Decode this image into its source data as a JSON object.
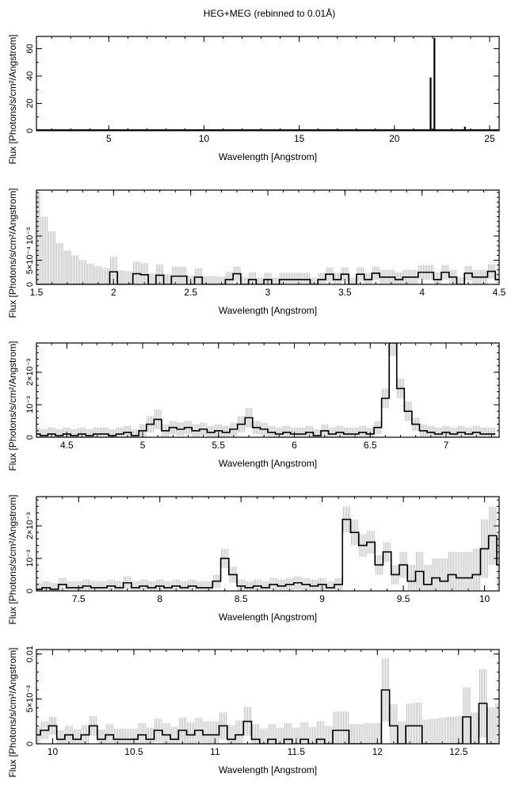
{
  "title": "HEG+MEG (rebinned to 0.01Å)",
  "colors": {
    "flux": "#000000",
    "error": "#b0b0b0",
    "frame": "#000000"
  },
  "chart_data": [
    {
      "type": "line",
      "xlabel": "Wavelength [Angstrom]",
      "ylabel": "Flux [Photons/s/cm²/Angstrom]",
      "xlim": [
        1.2,
        25.5
      ],
      "ylim": [
        0,
        69
      ],
      "xticks": [
        5,
        10,
        15,
        20,
        25
      ],
      "xtick_labels": [
        "5",
        "10",
        "15",
        "20",
        "25"
      ],
      "yticks": [
        0,
        20,
        40,
        60
      ],
      "ytick_labels": [
        "0",
        "20",
        "40",
        "60"
      ],
      "xminor": 1,
      "yminor": 10,
      "baseline": 0.3,
      "lines": [
        [
          21.9,
          39
        ],
        [
          22.1,
          68
        ],
        [
          23.7,
          3
        ]
      ]
    },
    {
      "type": "line",
      "xlabel": "Wavelength [Angstrom]",
      "ylabel": "Flux [Photons/s/cm²/Angstrom]",
      "xlim": [
        1.5,
        4.5
      ],
      "ylim": [
        0,
        0.00195
      ],
      "xticks": [
        1.5,
        2,
        2.5,
        3,
        3.5,
        4,
        4.5
      ],
      "xtick_labels": [
        "1.5",
        "2",
        "2.5",
        "3",
        "3.5",
        "4",
        "4.5"
      ],
      "yticks": [
        0,
        0.0005,
        0.001
      ],
      "ytick_labels": [
        "0",
        "5×10⁻⁴",
        "10⁻³"
      ],
      "xminor": 0.1,
      "yminor": 0.0001,
      "x0": 1.5,
      "dx": 0.05,
      "y_multiplier": 0.0001,
      "flux": [
        0,
        0,
        0,
        0,
        0,
        0,
        0,
        0,
        0,
        0,
        2.6,
        0,
        0,
        2.2,
        2.0,
        0,
        1.9,
        0,
        1.7,
        1.7,
        0,
        1.5,
        0,
        0,
        0,
        1,
        2.2,
        0,
        1,
        0,
        1,
        0,
        1,
        1,
        1,
        1,
        0,
        1,
        2.1,
        1,
        2.1,
        0,
        2.1,
        1,
        2.3,
        1.5,
        1.5,
        1,
        1.5,
        1.5,
        2.5,
        2.5,
        1,
        2.5,
        1.5,
        0,
        2.3,
        1.5,
        1.5,
        2.7,
        1
      ],
      "err": [
        19,
        14,
        11,
        8.5,
        7,
        6,
        5,
        4.3,
        3.8,
        3.4,
        3.1,
        2.9,
        2.7,
        2.5,
        2.4,
        2.3,
        2.2,
        2.1,
        2.0,
        1.9,
        1.8,
        1.8,
        1.7,
        1.7,
        1.6,
        1.6,
        1.5,
        1.5,
        1.5,
        1.4,
        1.4,
        1.4,
        1.4,
        1.4,
        1.4,
        1.4,
        1.4,
        1.4,
        1.4,
        1.4,
        1.4,
        1.4,
        1.4,
        1.4,
        1.4,
        1.5,
        1.5,
        1.5,
        1.5,
        1.5,
        1.5,
        1.5,
        1.5,
        1.5,
        1.5,
        1.5,
        1.5,
        1.5,
        1.5,
        1.5,
        1.5
      ]
    },
    {
      "type": "line",
      "xlabel": "Wavelength [Angstrom]",
      "ylabel": "Flux [Photons/s/cm²/Angstrom]",
      "xlim": [
        4.3,
        7.35
      ],
      "ylim": [
        0,
        0.0029
      ],
      "xticks": [
        4.5,
        5,
        5.5,
        6,
        6.5,
        7
      ],
      "xtick_labels": [
        "4.5",
        "5",
        "5.5",
        "6",
        "6.5",
        "7"
      ],
      "yticks": [
        0,
        0.001,
        0.002
      ],
      "ytick_labels": [
        "0",
        "10⁻³",
        "2×10⁻³"
      ],
      "xminor": 0.1,
      "yminor": 0.0002,
      "x0": 4.3,
      "dx": 0.05,
      "y_multiplier": 0.0001,
      "flux": [
        1,
        0.5,
        1,
        0.5,
        1,
        0.5,
        1,
        0.5,
        1,
        1,
        0.5,
        1,
        1.5,
        0.5,
        2,
        4,
        5.5,
        2,
        3,
        2.5,
        3,
        2,
        2.5,
        1.5,
        2,
        1.5,
        2.5,
        4,
        6,
        3,
        2.5,
        1.5,
        1,
        1.5,
        1,
        1,
        1.5,
        0.5,
        2,
        1,
        1.5,
        1,
        1,
        1.5,
        1,
        3,
        12,
        29,
        15,
        8,
        4,
        2,
        1.5,
        1,
        1.5,
        1,
        1.5,
        1,
        1.5,
        1,
        1
      ],
      "err": [
        2,
        2,
        2,
        2,
        2,
        2,
        2,
        2,
        2,
        2,
        2,
        2,
        2,
        2,
        2,
        2.5,
        3,
        2,
        2,
        2,
        2,
        2,
        2,
        2,
        2,
        2,
        2,
        2.5,
        3,
        2,
        2,
        2,
        2,
        2,
        2,
        2,
        2,
        2,
        2,
        2,
        2,
        2,
        2,
        2,
        2,
        2,
        3,
        4,
        3,
        3,
        2,
        2,
        2,
        2,
        2,
        2,
        2,
        2,
        2,
        2,
        2
      ]
    },
    {
      "type": "line",
      "xlabel": "Wavelength [Angstrom]",
      "ylabel": "Flux [Photons/s/cm²/Angstrom]",
      "xlim": [
        7.24,
        10.09
      ],
      "ylim": [
        0,
        0.0029
      ],
      "xticks": [
        7.5,
        8,
        8.5,
        9,
        9.5,
        10
      ],
      "xtick_labels": [
        "7.5",
        "8",
        "8.5",
        "9",
        "9.5",
        "10"
      ],
      "yticks": [
        0,
        0.001,
        0.002
      ],
      "ytick_labels": [
        "0",
        "10⁻³",
        "2×10⁻³"
      ],
      "xminor": 0.1,
      "yminor": 0.0002,
      "x0": 7.1,
      "dx": 0.05,
      "y_multiplier": 0.0001,
      "flux": [
        1,
        0.5,
        1,
        0.5,
        1,
        0.5,
        2,
        1,
        1,
        1.5,
        1,
        1,
        1.5,
        1,
        2.5,
        1,
        1.5,
        1,
        1.5,
        1,
        1.5,
        1,
        1.5,
        1,
        1,
        3,
        10,
        5,
        1.5,
        1,
        1.5,
        1,
        2,
        1.5,
        2,
        2.5,
        2,
        1.5,
        2,
        1,
        2,
        22,
        18,
        14,
        15,
        8,
        12,
        5,
        8,
        3,
        6,
        2,
        4,
        3,
        5,
        4,
        4,
        5,
        13,
        17,
        8
      ],
      "err": [
        2,
        2,
        2,
        2,
        2,
        2,
        2,
        2,
        2,
        2,
        2,
        2,
        2,
        2,
        2,
        2,
        2,
        2,
        2,
        2,
        2,
        2,
        2,
        2,
        2,
        2,
        3,
        2.5,
        2,
        2,
        2,
        2,
        2,
        2,
        2,
        2,
        2,
        2,
        2,
        2,
        2,
        4,
        4,
        3.5,
        3.5,
        3,
        3,
        3,
        4,
        5,
        6,
        6,
        6,
        7,
        7,
        8,
        8,
        8,
        9,
        9,
        9
      ]
    },
    {
      "type": "line",
      "xlabel": "Wavelength [Angstrom]",
      "ylabel": "Flux [Photons/s/cm²/Angstrom]",
      "xlim": [
        9.9,
        12.75
      ],
      "ylim": [
        0,
        0.0105
      ],
      "xticks": [
        10,
        10.5,
        11,
        11.5,
        12,
        12.5
      ],
      "xtick_labels": [
        "10",
        "10.5",
        "11",
        "11.5",
        "12",
        "12.5"
      ],
      "yticks": [
        0,
        0.005,
        0.01
      ],
      "ytick_labels": [
        "0",
        "5×10⁻³",
        "0.01"
      ],
      "xminor": 0.1,
      "yminor": 0.001,
      "x0": 9.9,
      "dx": 0.05,
      "y_multiplier": 0.001,
      "flux": [
        1,
        1.5,
        2,
        0.5,
        1,
        0.5,
        1,
        2,
        0.5,
        1,
        0.5,
        0.5,
        0.5,
        1,
        0.5,
        1.5,
        1,
        0.5,
        1.5,
        1,
        1.5,
        1,
        1,
        2,
        0.5,
        1,
        2.5,
        0.5,
        0,
        0.5,
        0,
        0.5,
        0,
        0.5,
        0,
        0.5,
        0,
        1.5,
        1.5,
        0,
        0,
        0,
        0,
        6,
        2,
        0,
        2,
        2,
        0,
        0,
        0,
        0,
        0,
        3,
        0,
        4.5,
        0,
        0,
        0,
        0,
        0
      ],
      "err": [
        1,
        1,
        1,
        1,
        1,
        1.1,
        1.1,
        1.1,
        1.1,
        1.2,
        1.2,
        1.2,
        1.2,
        1.3,
        1.3,
        1.3,
        1.3,
        1.4,
        1.4,
        1.4,
        1.4,
        1.5,
        1.5,
        1.5,
        1.6,
        1.6,
        1.6,
        1.7,
        1.7,
        1.7,
        1.8,
        1.8,
        1.8,
        1.9,
        1.9,
        2,
        2,
        2.1,
        2.1,
        2.2,
        2.2,
        2.3,
        2.3,
        3.5,
        2.4,
        2.5,
        2.5,
        2.6,
        2.7,
        2.8,
        2.9,
        3,
        3.1,
        3.3,
        3.5,
        3.8,
        4.1,
        4.5,
        5,
        5.5,
        6
      ]
    }
  ]
}
